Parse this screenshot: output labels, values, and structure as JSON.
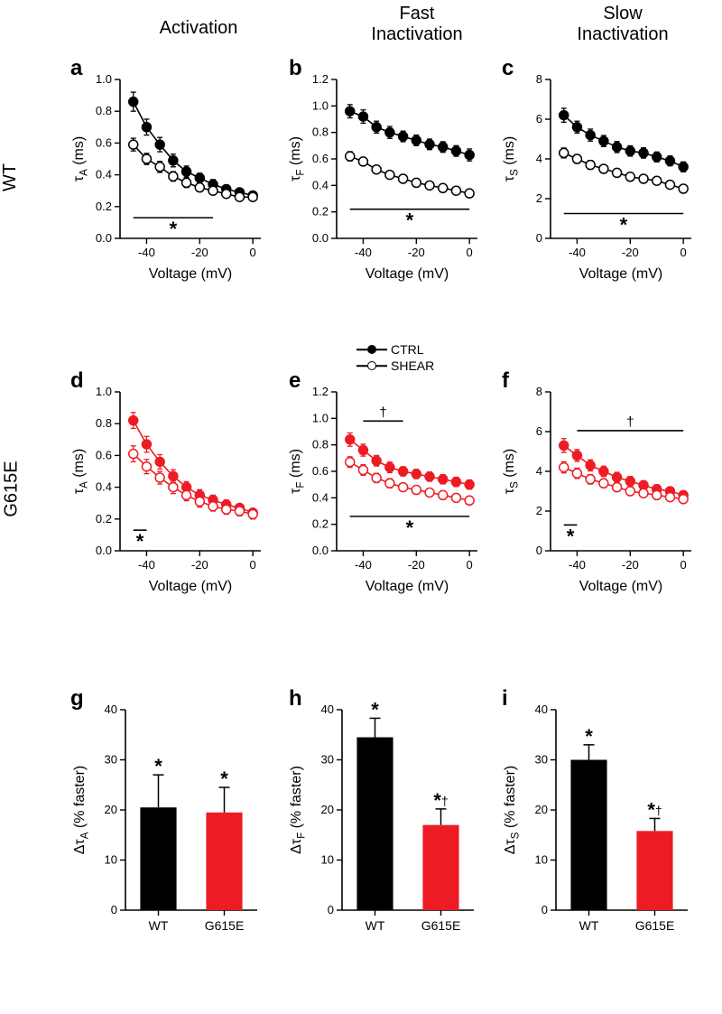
{
  "colors": {
    "wt": "#000000",
    "mut": "#ed1c24",
    "axis": "#000000",
    "bg": "#ffffff"
  },
  "fonts": {
    "header_size": 20,
    "panel_letter_size": 24,
    "axis_label_size": 16,
    "tick_size": 13
  },
  "column_headers": [
    "Activation",
    "Fast\nInactivation",
    "Slow\nInactivation"
  ],
  "row_labels": [
    "WT",
    "G615E"
  ],
  "panel_letters": [
    "a",
    "b",
    "c",
    "d",
    "e",
    "f",
    "g",
    "h",
    "i"
  ],
  "legend": {
    "ctrl": "CTRL",
    "shear": "SHEAR"
  },
  "scatter_common": {
    "x_values": [
      -45,
      -40,
      -35,
      -30,
      -25,
      -20,
      -15,
      -10,
      -5,
      0
    ],
    "xlim": [
      -50,
      3
    ],
    "xticks": [
      -40,
      -20,
      0
    ],
    "xlabel": "Voltage (mV)",
    "marker_size": 5,
    "line_width": 1.6
  },
  "plots": {
    "a": {
      "ylabel": "τ_A (ms)",
      "ylim": [
        0,
        1.0
      ],
      "yticks": [
        0.0,
        0.2,
        0.4,
        0.6,
        0.8,
        1.0
      ],
      "series": [
        {
          "name": "CTRL",
          "fill": "filled",
          "color": "#000000",
          "y": [
            0.86,
            0.7,
            0.59,
            0.49,
            0.42,
            0.38,
            0.34,
            0.31,
            0.29,
            0.27
          ],
          "err": [
            0.06,
            0.05,
            0.045,
            0.04,
            0.035,
            0.03,
            0.03,
            0.025,
            0.02,
            0.02
          ]
        },
        {
          "name": "SHEAR",
          "fill": "open",
          "color": "#000000",
          "y": [
            0.59,
            0.5,
            0.45,
            0.39,
            0.35,
            0.32,
            0.3,
            0.28,
            0.26,
            0.26
          ],
          "err": [
            0.04,
            0.035,
            0.035,
            0.03,
            0.03,
            0.025,
            0.025,
            0.02,
            0.02,
            0.02
          ]
        }
      ],
      "sig_bars": [
        {
          "x0": -45,
          "x1": -15,
          "y": 0.13,
          "symbol": "*"
        }
      ]
    },
    "b": {
      "ylabel": "τ_F (ms)",
      "ylim": [
        0,
        1.2
      ],
      "yticks": [
        0.0,
        0.2,
        0.4,
        0.6,
        0.8,
        1.0,
        1.2
      ],
      "series": [
        {
          "name": "CTRL",
          "fill": "filled",
          "color": "#000000",
          "y": [
            0.96,
            0.92,
            0.84,
            0.8,
            0.77,
            0.74,
            0.71,
            0.69,
            0.66,
            0.63
          ],
          "err": [
            0.05,
            0.05,
            0.045,
            0.045,
            0.04,
            0.04,
            0.04,
            0.04,
            0.04,
            0.045
          ]
        },
        {
          "name": "SHEAR",
          "fill": "open",
          "color": "#000000",
          "y": [
            0.62,
            0.58,
            0.52,
            0.48,
            0.45,
            0.42,
            0.4,
            0.38,
            0.36,
            0.34
          ],
          "err": [
            0.035,
            0.03,
            0.03,
            0.028,
            0.028,
            0.025,
            0.025,
            0.025,
            0.022,
            0.022
          ]
        }
      ],
      "sig_bars": [
        {
          "x0": -45,
          "x1": 0,
          "y": 0.22,
          "symbol": "*"
        }
      ]
    },
    "c": {
      "ylabel": "τ_S (ms)",
      "ylim": [
        0,
        8
      ],
      "yticks": [
        0,
        2,
        4,
        6,
        8
      ],
      "series": [
        {
          "name": "CTRL",
          "fill": "filled",
          "color": "#000000",
          "y": [
            6.2,
            5.6,
            5.2,
            4.9,
            4.6,
            4.4,
            4.3,
            4.1,
            3.9,
            3.6
          ],
          "err": [
            0.35,
            0.3,
            0.3,
            0.28,
            0.28,
            0.26,
            0.26,
            0.25,
            0.25,
            0.25
          ]
        },
        {
          "name": "SHEAR",
          "fill": "open",
          "color": "#000000",
          "y": [
            4.3,
            4.0,
            3.7,
            3.5,
            3.3,
            3.1,
            3.0,
            2.9,
            2.7,
            2.5
          ],
          "err": [
            0.25,
            0.22,
            0.22,
            0.2,
            0.2,
            0.2,
            0.18,
            0.18,
            0.18,
            0.16
          ]
        }
      ],
      "sig_bars": [
        {
          "x0": -45,
          "x1": 0,
          "y": 1.25,
          "symbol": "*"
        }
      ]
    },
    "d": {
      "ylabel": "τ_A (ms)",
      "ylim": [
        0,
        1.0
      ],
      "yticks": [
        0.0,
        0.2,
        0.4,
        0.6,
        0.8,
        1.0
      ],
      "series": [
        {
          "name": "CTRL",
          "fill": "filled",
          "color": "#ed1c24",
          "y": [
            0.82,
            0.67,
            0.56,
            0.47,
            0.4,
            0.35,
            0.32,
            0.29,
            0.27,
            0.24
          ],
          "err": [
            0.05,
            0.05,
            0.045,
            0.04,
            0.035,
            0.035,
            0.03,
            0.03,
            0.025,
            0.02
          ]
        },
        {
          "name": "SHEAR",
          "fill": "open",
          "color": "#ed1c24",
          "y": [
            0.61,
            0.53,
            0.46,
            0.4,
            0.35,
            0.31,
            0.28,
            0.26,
            0.25,
            0.23
          ],
          "err": [
            0.05,
            0.045,
            0.04,
            0.04,
            0.035,
            0.035,
            0.03,
            0.03,
            0.03,
            0.03
          ]
        }
      ],
      "sig_bars": [
        {
          "x0": -45,
          "x1": -40,
          "y": 0.13,
          "symbol": "*"
        }
      ]
    },
    "e": {
      "ylabel": "τ_F (ms)",
      "ylim": [
        0,
        1.2
      ],
      "yticks": [
        0.0,
        0.2,
        0.4,
        0.6,
        0.8,
        1.0,
        1.2
      ],
      "series": [
        {
          "name": "CTRL",
          "fill": "filled",
          "color": "#ed1c24",
          "y": [
            0.84,
            0.76,
            0.68,
            0.63,
            0.6,
            0.58,
            0.56,
            0.54,
            0.52,
            0.5
          ],
          "err": [
            0.05,
            0.045,
            0.04,
            0.04,
            0.035,
            0.035,
            0.035,
            0.035,
            0.035,
            0.035
          ]
        },
        {
          "name": "SHEAR",
          "fill": "open",
          "color": "#ed1c24",
          "y": [
            0.67,
            0.61,
            0.55,
            0.51,
            0.48,
            0.46,
            0.44,
            0.42,
            0.4,
            0.38
          ],
          "err": [
            0.04,
            0.04,
            0.035,
            0.035,
            0.03,
            0.03,
            0.03,
            0.03,
            0.03,
            0.03
          ]
        }
      ],
      "sig_bars": [
        {
          "x0": -40,
          "x1": -25,
          "y": 0.98,
          "symbol": "†"
        },
        {
          "x0": -45,
          "x1": 0,
          "y": 0.26,
          "symbol": "*"
        }
      ]
    },
    "f": {
      "ylabel": "τ_S (ms)",
      "ylim": [
        0,
        8
      ],
      "yticks": [
        0,
        2,
        4,
        6,
        8
      ],
      "series": [
        {
          "name": "CTRL",
          "fill": "filled",
          "color": "#ed1c24",
          "y": [
            5.3,
            4.8,
            4.3,
            4.0,
            3.7,
            3.5,
            3.3,
            3.1,
            3.0,
            2.8
          ],
          "err": [
            0.35,
            0.3,
            0.28,
            0.26,
            0.25,
            0.24,
            0.22,
            0.22,
            0.2,
            0.2
          ]
        },
        {
          "name": "SHEAR",
          "fill": "open",
          "color": "#ed1c24",
          "y": [
            4.2,
            3.9,
            3.6,
            3.4,
            3.2,
            3.0,
            2.9,
            2.8,
            2.7,
            2.6
          ],
          "err": [
            0.28,
            0.26,
            0.24,
            0.22,
            0.22,
            0.2,
            0.2,
            0.2,
            0.18,
            0.18
          ]
        }
      ],
      "sig_bars": [
        {
          "x0": -40,
          "x1": 0,
          "y": 6.05,
          "symbol": "†"
        },
        {
          "x0": -45,
          "x1": -40,
          "y": 1.3,
          "symbol": "*"
        }
      ]
    }
  },
  "bar_common": {
    "ylim": [
      0,
      40
    ],
    "yticks": [
      0,
      10,
      20,
      30,
      40
    ],
    "categories": [
      "WT",
      "G615E"
    ],
    "bar_width": 0.55
  },
  "bars": {
    "g": {
      "ylabel": "Δτ_A (% faster)",
      "values": [
        20.5,
        19.5
      ],
      "errors": [
        6.5,
        5.0
      ],
      "colors": [
        "#000000",
        "#ed1c24"
      ],
      "annotations": [
        [
          "*"
        ],
        [
          "*"
        ]
      ]
    },
    "h": {
      "ylabel": "Δτ_F (% faster)",
      "values": [
        34.5,
        17.0
      ],
      "errors": [
        3.8,
        3.2
      ],
      "colors": [
        "#000000",
        "#ed1c24"
      ],
      "annotations": [
        [
          "*"
        ],
        [
          "*",
          "†"
        ]
      ]
    },
    "i": {
      "ylabel": "Δτ_S (% faster)",
      "values": [
        30.0,
        15.8
      ],
      "errors": [
        3.0,
        2.5
      ],
      "colors": [
        "#000000",
        "#ed1c24"
      ],
      "annotations": [
        [
          "*"
        ],
        [
          "*",
          "†"
        ]
      ]
    }
  }
}
